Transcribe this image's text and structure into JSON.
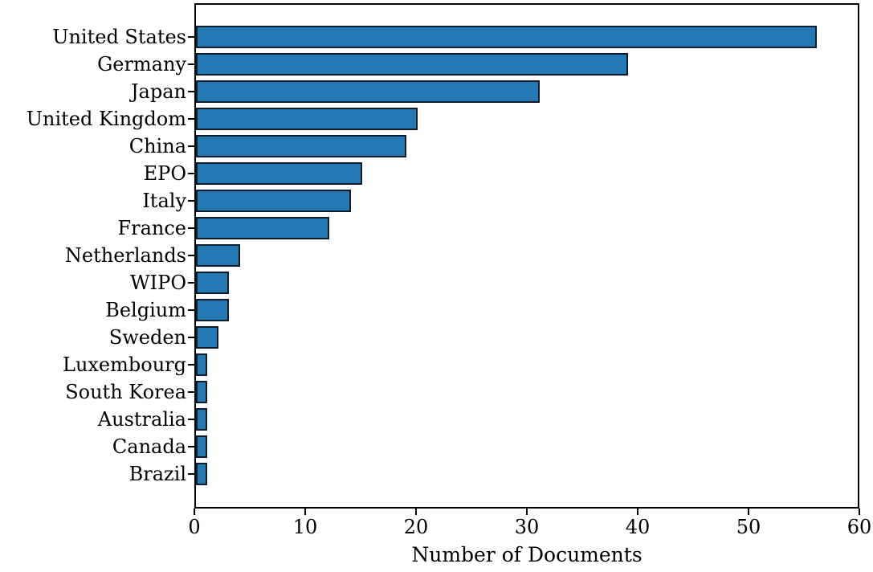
{
  "chart_data": {
    "type": "bar",
    "orientation": "horizontal",
    "title": "",
    "xlabel": "Number of Documents",
    "ylabel": "",
    "xlim": [
      0,
      60
    ],
    "xticks": [
      0,
      10,
      20,
      30,
      40,
      50,
      60
    ],
    "grid": false,
    "categories": [
      "United States",
      "Germany",
      "Japan",
      "United Kingdom",
      "China",
      "EPO",
      "Italy",
      "France",
      "Netherlands",
      "WIPO",
      "Belgium",
      "Sweden",
      "Luxembourg",
      "South Korea",
      "Australia",
      "Canada",
      "Brazil"
    ],
    "values": [
      56,
      39,
      31,
      20,
      19,
      15,
      14,
      12,
      4,
      3,
      3,
      2,
      1,
      1,
      1,
      1,
      1
    ],
    "colors": {
      "bar_fill": "#2478b4",
      "bar_edge": "#0e1c29",
      "axis": "#000000",
      "text": "#000000",
      "background": "#ffffff"
    }
  }
}
